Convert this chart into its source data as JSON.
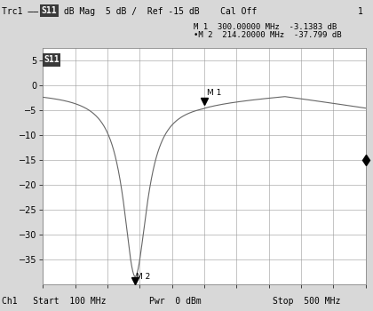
{
  "xmin": 100,
  "xmax": 500,
  "ymin": -40,
  "ymax": 7.5,
  "yticks": [
    5,
    0,
    -5,
    -10,
    -15,
    -20,
    -25,
    -30,
    -35
  ],
  "xticks_minor": [
    100,
    140,
    180,
    220,
    260,
    300,
    340,
    380,
    420,
    460,
    500
  ],
  "m1_freq": 300,
  "m1_val": -3.1383,
  "m2_freq": 214.2,
  "m2_val": -37.799,
  "diamond_freq": 500,
  "diamond_val": -15.0,
  "title_left": "Trc1 —— ",
  "title_s11": "S11",
  "title_right": " dB Mag  5 dB /  Ref -15 dB    Cal Off",
  "title_num": "1",
  "marker1_text": "M 1  300.00000 MHz  -3.1383 dB",
  "marker2_text": "•M 2  214.20000 MHz  -37.799 dB",
  "s11_box": "S11",
  "bottom_left": "Ch1   Start  100 MHz",
  "bottom_mid": "Pwr  0 dBm",
  "bottom_right": "Stop  500 MHz",
  "fig_bg": "#d8d8d8",
  "plot_bg": "#ffffff",
  "trace_color": "#666666",
  "grid_color": "#999999",
  "text_color": "#000000"
}
